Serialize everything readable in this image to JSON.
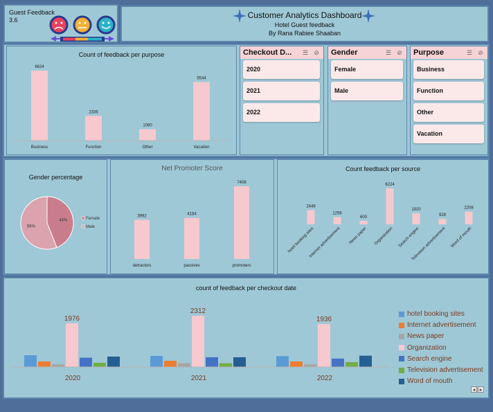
{
  "kpi": {
    "label": "Guest Feedback",
    "value": "3.6"
  },
  "header": {
    "title": "Customer Analytics Dashboard",
    "subtitle": "Hotel Guest feedback",
    "author": "By Rana Rabiee Shaaban"
  },
  "colors": {
    "bar": "#f6c9ce",
    "frame": "#5c86ad",
    "panel": "#9fc8d6",
    "pie_female": "#c97d8c",
    "pie_male": "#dba3ae"
  },
  "slicers": {
    "checkout": {
      "title": "Checkout D...",
      "items": [
        "2020",
        "2021",
        "2022"
      ]
    },
    "gender": {
      "title": "Gender",
      "items": [
        "Female",
        "Male"
      ]
    },
    "purpose": {
      "title": "Purpose",
      "items": [
        "Business",
        "Function",
        "Other",
        "Vacation"
      ]
    },
    "icons": [
      "multi-select-icon",
      "clear-filter-icon"
    ]
  },
  "charts": {
    "purpose": {
      "title": "Count of feedback per purpose"
    },
    "gender": {
      "title": "Gender percentage"
    },
    "nps": {
      "title": "Net Promoter Score"
    },
    "source": {
      "title": "Count feedback per source"
    },
    "checkout": {
      "title": "count of feedback per checkout date"
    }
  },
  "chart_data": [
    {
      "type": "bar",
      "title": "Count of feedback per purpose",
      "categories": [
        "Business",
        "Function",
        "Other",
        "Vacation"
      ],
      "values": [
        6624,
        2336,
        1080,
        5544
      ]
    },
    {
      "type": "pie",
      "title": "Gender percentage",
      "categories": [
        "Female",
        "Male"
      ],
      "values": [
        44,
        56
      ],
      "labels": [
        "44%",
        "56%"
      ],
      "legend": "right"
    },
    {
      "type": "bar",
      "title": "Net Promoter Score",
      "categories": [
        "detractors",
        "passives",
        "promoters"
      ],
      "values": [
        3992,
        4184,
        7408
      ]
    },
    {
      "type": "bar",
      "title": "Count feedback per source",
      "categories": [
        "hotel booking sites",
        "Internet advertisement",
        "News paper",
        "Organization",
        "Search engine",
        "Television advertisement",
        "Word of mouth"
      ],
      "values": [
        2448,
        1256,
        600,
        6224,
        1920,
        928,
        2208
      ]
    },
    {
      "type": "bar",
      "title": "count of feedback per checkout date",
      "categories": [
        "2020",
        "2021",
        "2022"
      ],
      "series": [
        {
          "name": "hotel booking sites",
          "color": "#5b9bd5",
          "values": [
            530,
            500,
            490
          ]
        },
        {
          "name": "Internet advertisement",
          "color": "#ed7d31",
          "values": [
            250,
            280,
            250
          ]
        },
        {
          "name": "News paper",
          "color": "#a5a5a5",
          "values": [
            120,
            170,
            120
          ]
        },
        {
          "name": "Organization",
          "color": "#f6c9ce",
          "values": [
            1976,
            2312,
            1936
          ]
        },
        {
          "name": "Search engine",
          "color": "#4472c4",
          "values": [
            420,
            440,
            380
          ]
        },
        {
          "name": "Television advertisement",
          "color": "#70ad47",
          "values": [
            190,
            170,
            220
          ]
        },
        {
          "name": "Word of mouth",
          "color": "#255e91",
          "values": [
            470,
            440,
            510
          ]
        }
      ],
      "data_labels": [
        "1976",
        "2312",
        "1936"
      ],
      "legend": "right"
    }
  ]
}
